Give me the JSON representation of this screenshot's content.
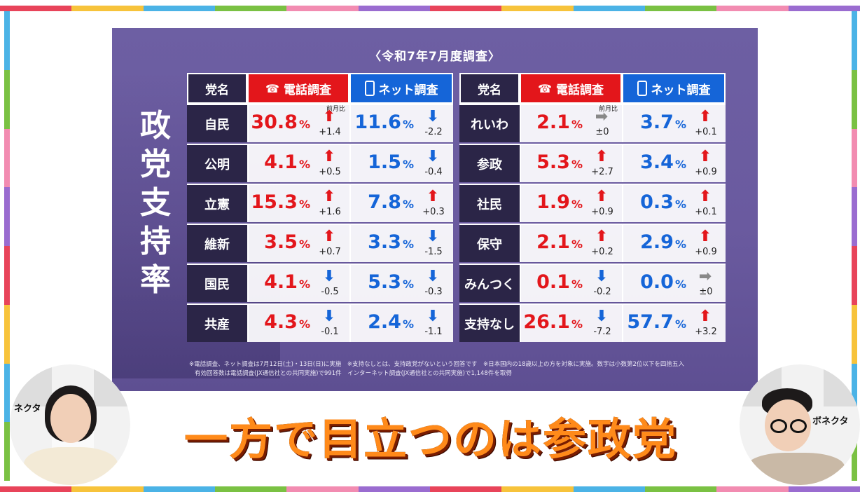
{
  "survey_title": "〈令和7年7月度調査〉",
  "vertical_title": [
    "政",
    "党",
    "支",
    "持",
    "率"
  ],
  "headers": {
    "party": "党名",
    "phone": "電話調査",
    "net": "ネット調査",
    "prev_month": "前月比"
  },
  "left_rows": [
    {
      "party": "自民",
      "phone": "30.8",
      "phone_dir": "up",
      "phone_delta": "+1.4",
      "net": "11.6",
      "net_dir": "down",
      "net_delta": "-2.2"
    },
    {
      "party": "公明",
      "phone": "4.1",
      "phone_dir": "up",
      "phone_delta": "+0.5",
      "net": "1.5",
      "net_dir": "down",
      "net_delta": "-0.4"
    },
    {
      "party": "立憲",
      "phone": "15.3",
      "phone_dir": "up",
      "phone_delta": "+1.6",
      "net": "7.8",
      "net_dir": "up",
      "net_delta": "+0.3"
    },
    {
      "party": "維新",
      "phone": "3.5",
      "phone_dir": "up",
      "phone_delta": "+0.7",
      "net": "3.3",
      "net_dir": "down",
      "net_delta": "-1.5"
    },
    {
      "party": "国民",
      "phone": "4.1",
      "phone_dir": "down",
      "phone_delta": "-0.5",
      "net": "5.3",
      "net_dir": "down",
      "net_delta": "-0.3"
    },
    {
      "party": "共産",
      "phone": "4.3",
      "phone_dir": "down",
      "phone_delta": "-0.1",
      "net": "2.4",
      "net_dir": "down",
      "net_delta": "-1.1"
    }
  ],
  "right_rows": [
    {
      "party": "れいわ",
      "phone": "2.1",
      "phone_dir": "flat",
      "phone_delta": "±0",
      "net": "3.7",
      "net_dir": "up",
      "net_delta": "+0.1"
    },
    {
      "party": "参政",
      "phone": "5.3",
      "phone_dir": "up",
      "phone_delta": "+2.7",
      "net": "3.4",
      "net_dir": "up",
      "net_delta": "+0.9"
    },
    {
      "party": "社民",
      "phone": "1.9",
      "phone_dir": "up",
      "phone_delta": "+0.9",
      "net": "0.3",
      "net_dir": "up",
      "net_delta": "+0.1"
    },
    {
      "party": "保守",
      "phone": "2.1",
      "phone_dir": "up",
      "phone_delta": "+0.2",
      "net": "2.9",
      "net_dir": "up",
      "net_delta": "+0.9"
    },
    {
      "party": "みんつく",
      "phone": "0.1",
      "phone_dir": "down",
      "phone_delta": "-0.2",
      "net": "0.0",
      "net_dir": "flat",
      "net_delta": "±0"
    },
    {
      "party": "支持なし",
      "phone": "26.1",
      "phone_dir": "down",
      "phone_delta": "-7.2",
      "net": "57.7",
      "net_dir": "up",
      "net_delta": "+3.2"
    }
  ],
  "unit": "%",
  "footnote_line1": "※電話調査、ネット調査は7月12日(土)・13日(日)に実施　※支持なしとは、支持政党がないという回答です　※日本国内の18歳以上の方を対象に実施。数字は小数第2位以下を四捨五入",
  "footnote_line2": "有効回答数は電話調査(JX通信社との共同実施)で991件　インターネット調査(JX通信社との共同実施)で1,148件を取得",
  "caption": "一方で目立つのは参政党",
  "brand_left": "ネクタ",
  "brand_right": "ボネクタ",
  "colors": {
    "slide_bg": "#6a5a9f",
    "phone_red": "#e3161b",
    "net_blue": "#1565d8",
    "party_dark": "#2b2547",
    "caption_orange": "#ff8a1a"
  }
}
